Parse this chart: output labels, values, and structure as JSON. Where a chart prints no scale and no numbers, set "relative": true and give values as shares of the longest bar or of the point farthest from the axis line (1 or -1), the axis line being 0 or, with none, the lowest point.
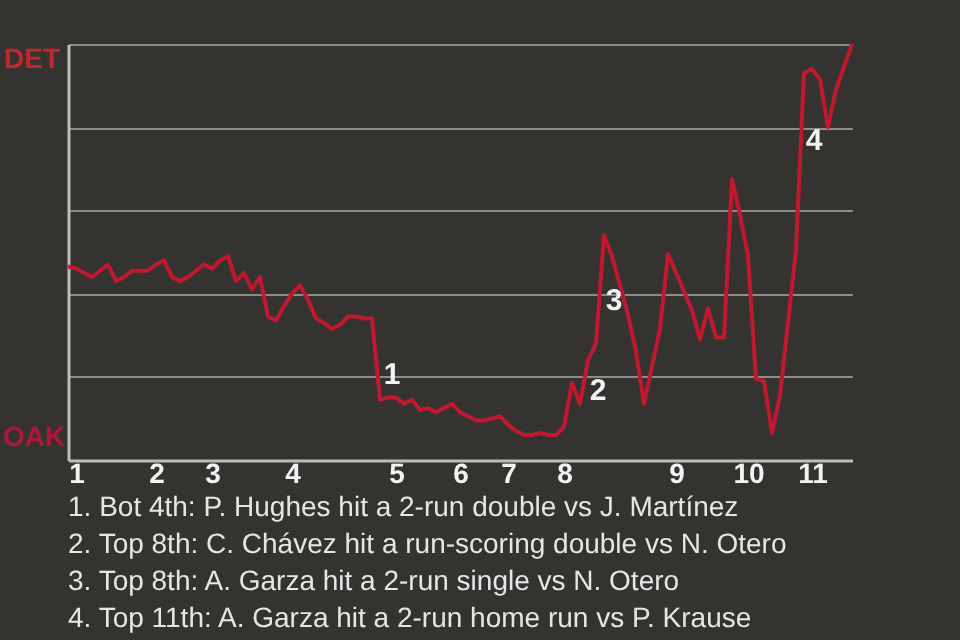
{
  "chart_data": {
    "type": "line",
    "relative": true,
    "grid": "y",
    "categories": [
      null,
      "1",
      null,
      null,
      null,
      null,
      null,
      null,
      null,
      null,
      null,
      "2",
      null,
      null,
      null,
      null,
      null,
      null,
      "3",
      null,
      null,
      null,
      null,
      null,
      null,
      null,
      null,
      null,
      "4",
      null,
      null,
      null,
      null,
      null,
      null,
      null,
      null,
      null,
      null,
      null,
      null,
      "5",
      null,
      null,
      null,
      null,
      null,
      null,
      null,
      "6",
      null,
      null,
      null,
      null,
      null,
      "7",
      null,
      null,
      null,
      null,
      null,
      null,
      "8",
      null,
      null,
      null,
      null,
      null,
      null,
      null,
      null,
      null,
      null,
      null,
      null,
      null,
      "9",
      null,
      null,
      null,
      null,
      null,
      null,
      null,
      null,
      "10",
      null,
      null,
      null,
      null,
      null,
      null,
      null,
      "11",
      null,
      null,
      null,
      null,
      null
    ],
    "series": [
      {
        "color": "#c0182f",
        "values": [
          0.465,
          0.46,
          0.45,
          0.44,
          0.455,
          0.47,
          0.43,
          0.44,
          0.455,
          0.455,
          0.455,
          0.47,
          0.48,
          0.44,
          0.43,
          0.44,
          0.455,
          0.47,
          0.46,
          0.48,
          0.49,
          0.43,
          0.45,
          0.41,
          0.44,
          0.345,
          0.335,
          0.37,
          0.4,
          0.42,
          0.385,
          0.34,
          0.33,
          0.315,
          0.325,
          0.345,
          0.345,
          0.34,
          0.34,
          0.145,
          0.15,
          0.15,
          0.135,
          0.145,
          0.12,
          0.125,
          0.115,
          0.125,
          0.135,
          0.115,
          0.105,
          0.095,
          0.095,
          0.1,
          0.105,
          0.085,
          0.07,
          0.06,
          0.06,
          0.065,
          0.06,
          0.06,
          0.08,
          0.185,
          0.135,
          0.24,
          0.28,
          0.54,
          0.49,
          0.42,
          0.35,
          0.26,
          0.135,
          0.225,
          0.315,
          0.495,
          0.45,
          0.405,
          0.36,
          0.29,
          0.365,
          0.295,
          0.295,
          0.675,
          0.59,
          0.49,
          0.195,
          0.19,
          0.065,
          0.155,
          0.33,
          0.505,
          0.93,
          0.94,
          0.915,
          0.8,
          0.89,
          0.945,
          1.0
        ]
      }
    ],
    "annotations": [
      "DET",
      "OAK",
      "1",
      "2",
      "3",
      "4",
      "1. Bot 4th: P. Hughes hit a 2-run double vs J. Martínez",
      "2. Top 8th: C. Chávez hit a run-scoring double vs N. Otero",
      "3. Top 8th: A. Garza hit a 2-run single vs N. Otero",
      "4. Top 11th: A. Garza hit a 2-run home run vs P. Krause"
    ]
  }
}
